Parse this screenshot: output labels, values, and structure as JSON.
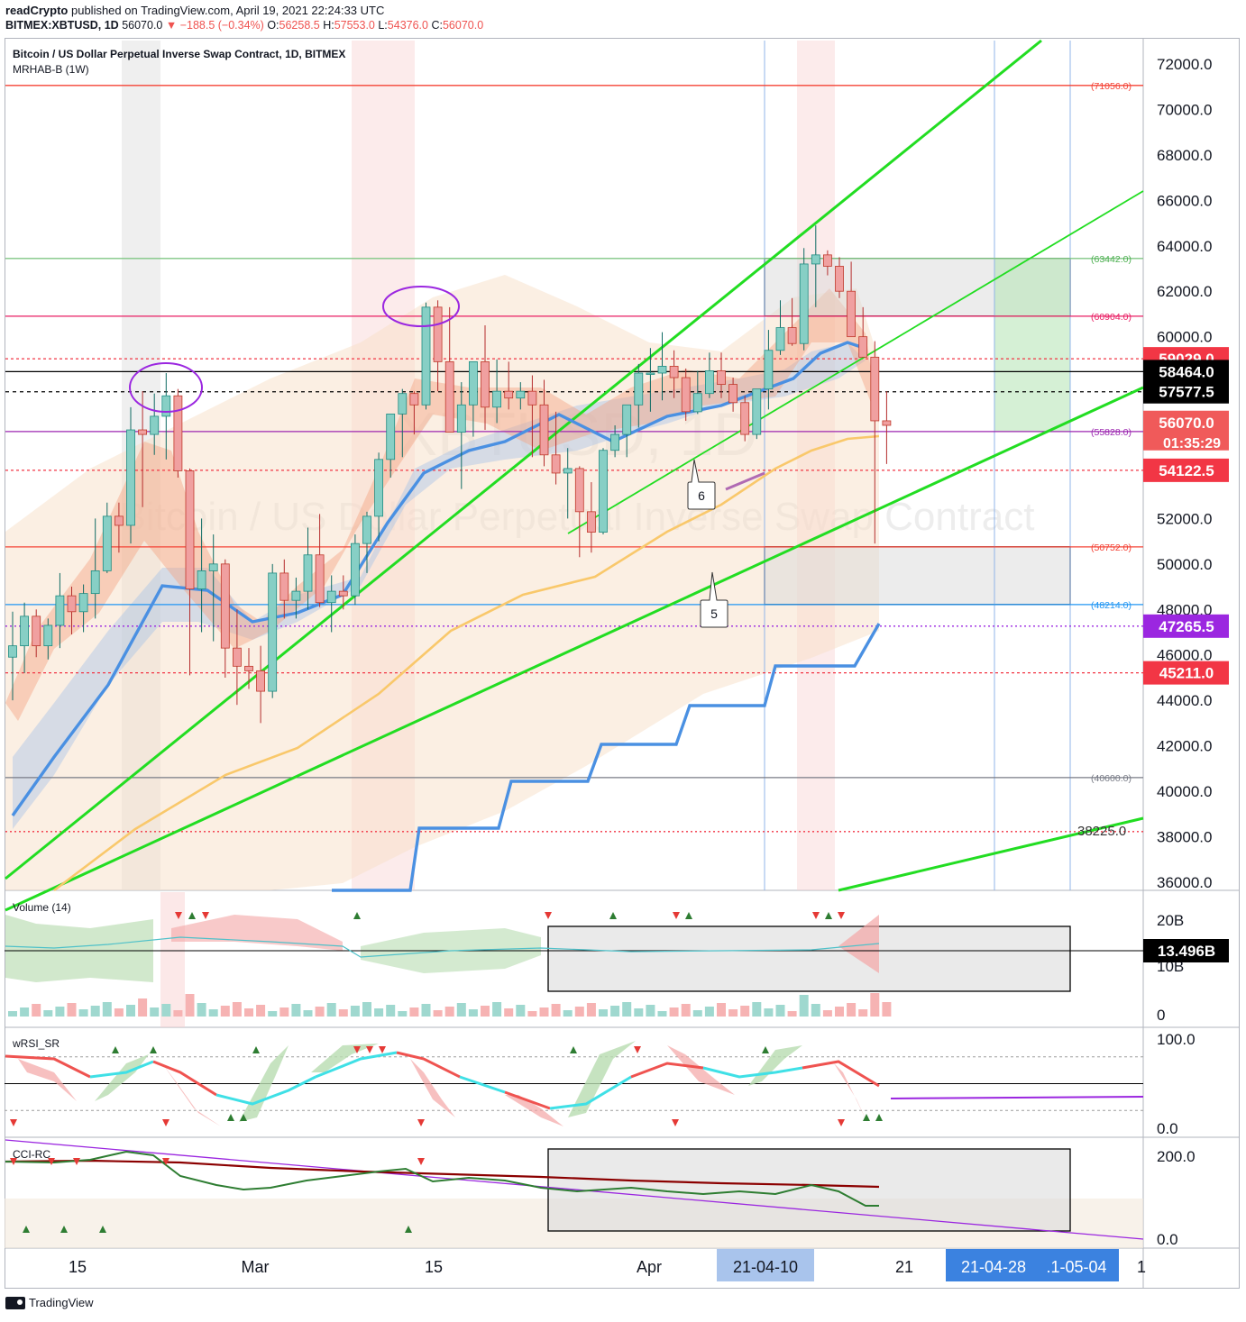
{
  "header": {
    "author": "readCrypto",
    "published": "published on TradingView.com, April 19, 2021 22:24:33 UTC",
    "symbol_line": "BITMEX:XBTUSD, 1D",
    "last": "56070.0",
    "change": "▼ −188.5 (−0.34%)",
    "o_label": "O:",
    "o_val": "56258.5",
    "h_label": "H:",
    "h_val": "57553.0",
    "l_label": "L:",
    "l_val": "54376.0",
    "c_label": "C:",
    "c_val": "56070.0"
  },
  "chart": {
    "title": "Bitcoin / US Dollar Perpetual Inverse Swap Contract, 1D, BITMEX",
    "indicator": "MRHAB-B (1W)",
    "watermark_ticker": "XBTUSD, 1D",
    "watermark_name": "Bitcoin / US Dollar Perpetual Inverse Swap Contract"
  },
  "footer": {
    "brand": "TradingView"
  },
  "colors": {
    "up": "#26a69a",
    "down": "#ef5350",
    "trend": "#22dd22",
    "blue_line": "#4a90e2",
    "ma_orange": "#f9c86b",
    "rsi_up": "#3fe0e6",
    "purple": "#9b27e0"
  },
  "chart_data": [
    {
      "type": "candlestick",
      "title": "Bitcoin / US Dollar Perpetual Inverse Swap Contract, 1D, BITMEX",
      "ylim": [
        35600,
        73000
      ],
      "y_ticks": [
        "72000.0",
        "70000.0",
        "68000.0",
        "66000.0",
        "64000.0",
        "62000.0",
        "60000.0",
        "58000.0",
        "56000.0",
        "54000.0",
        "52000.0",
        "50000.0",
        "48000.0",
        "46000.0",
        "44000.0",
        "42000.0",
        "40000.0",
        "38000.0",
        "36000.0"
      ],
      "x_labels": [
        "15",
        "Mar",
        "15",
        "Apr",
        "21-04-10",
        "21",
        "21-04-28",
        "21-05-04"
      ],
      "partial_labels": [
        ".1-05-04",
        "1"
      ],
      "price_badges": [
        {
          "text": "59029.0",
          "color": "#f23645"
        },
        {
          "text": "58464.0",
          "color": "#000000"
        },
        {
          "text": "57577.5",
          "color": "#000000"
        },
        {
          "text": "56070.0",
          "color": "#f05a5a"
        },
        {
          "text": "01:35:29",
          "color": "#f05a5a"
        },
        {
          "text": "54122.5",
          "color": "#f23645"
        },
        {
          "text": "47265.5",
          "color": "#9b27e0"
        },
        {
          "text": "45211.0",
          "color": "#f23645"
        }
      ],
      "level_labels": [
        "(71056.0)",
        "(63442.0)",
        "(60904.0)",
        "(55828.0)",
        "(50752.0)",
        "(48214.0)",
        "(40600.0)",
        "38225.0"
      ],
      "annotations": [
        "6",
        "5"
      ],
      "candles": [
        [
          45900,
          47900,
          44000,
          46400
        ],
        [
          46400,
          48300,
          45200,
          47700
        ],
        [
          47700,
          48000,
          45900,
          46400
        ],
        [
          46400,
          47600,
          45800,
          47300
        ],
        [
          47300,
          49600,
          46300,
          48600
        ],
        [
          48600,
          49000,
          46900,
          47900
        ],
        [
          47900,
          49100,
          47000,
          48700
        ],
        [
          48700,
          52000,
          47600,
          49700
        ],
        [
          49700,
          52700,
          49600,
          52100
        ],
        [
          52100,
          52700,
          50500,
          51700
        ],
        [
          51700,
          56900,
          50900,
          55900
        ],
        [
          55900,
          57600,
          52500,
          55700
        ],
        [
          55700,
          57500,
          54800,
          56500
        ],
        [
          56500,
          58400,
          54600,
          57400
        ],
        [
          57400,
          57700,
          53800,
          54100
        ],
        [
          54100,
          54200,
          45100,
          48900
        ],
        [
          48900,
          52000,
          47000,
          49700
        ],
        [
          49700,
          51300,
          46600,
          50000
        ],
        [
          50000,
          50200,
          45000,
          46300
        ],
        [
          46300,
          48000,
          43800,
          45500
        ],
        [
          45500,
          46300,
          44500,
          45300
        ],
        [
          45300,
          46400,
          43000,
          44400
        ],
        [
          44400,
          50000,
          44100,
          49600
        ],
        [
          49600,
          50200,
          47600,
          48400
        ],
        [
          48400,
          49400,
          47600,
          48800
        ],
        [
          48800,
          51600,
          48000,
          50400
        ],
        [
          50400,
          52200,
          48100,
          48300
        ],
        [
          48300,
          49500,
          47000,
          48800
        ],
        [
          48800,
          49500,
          48000,
          48600
        ],
        [
          48600,
          51300,
          48200,
          50900
        ],
        [
          50900,
          52300,
          49600,
          52100
        ],
        [
          52100,
          54900,
          51000,
          54600
        ],
        [
          54600,
          56500,
          53800,
          56600
        ],
        [
          56600,
          57700,
          54700,
          57500
        ],
        [
          57500,
          57600,
          55700,
          57000
        ],
        [
          57000,
          61500,
          56800,
          61300
        ],
        [
          61300,
          61600,
          57600,
          58900
        ],
        [
          58900,
          61300,
          55800,
          55800
        ],
        [
          55800,
          58000,
          53300,
          57000
        ],
        [
          57000,
          58700,
          55600,
          58900
        ],
        [
          58900,
          60500,
          55900,
          56900
        ],
        [
          56900,
          59000,
          56200,
          57600
        ],
        [
          57600,
          58900,
          56800,
          57300
        ],
        [
          57300,
          58000,
          56800,
          57600
        ],
        [
          57600,
          58300,
          54700,
          57000
        ],
        [
          57000,
          58100,
          54300,
          54800
        ],
        [
          54800,
          56700,
          53500,
          54000
        ],
        [
          54000,
          55100,
          52000,
          54200
        ],
        [
          54200,
          54300,
          50300,
          52300
        ],
        [
          52300,
          53600,
          50500,
          51400
        ],
        [
          51400,
          55100,
          51300,
          55000
        ],
        [
          55000,
          56100,
          54700,
          55700
        ],
        [
          55700,
          57000,
          54700,
          57000
        ],
        [
          57000,
          58800,
          56000,
          58400
        ],
        [
          58400,
          59500,
          56700,
          58400
        ],
        [
          58400,
          60200,
          57200,
          58700
        ],
        [
          58700,
          59400,
          57300,
          58200
        ],
        [
          58200,
          58600,
          56300,
          56700
        ],
        [
          56700,
          58500,
          56600,
          57500
        ],
        [
          57500,
          59300,
          57300,
          58500
        ],
        [
          58500,
          59300,
          57300,
          57900
        ],
        [
          57900,
          58200,
          56700,
          57100
        ],
        [
          57100,
          57400,
          55400,
          55700
        ],
        [
          55700,
          57700,
          55500,
          57700
        ],
        [
          57700,
          60300,
          56800,
          59400
        ],
        [
          59400,
          61600,
          59200,
          60400
        ],
        [
          60400,
          61700,
          59600,
          59700
        ],
        [
          59700,
          63900,
          59400,
          63200
        ],
        [
          63200,
          64900,
          61300,
          63600
        ],
        [
          63600,
          63800,
          62700,
          63100
        ],
        [
          63100,
          63500,
          61700,
          62000
        ],
        [
          62000,
          63300,
          60100,
          60000
        ],
        [
          60000,
          61300,
          59200,
          59100
        ],
        [
          59100,
          59800,
          50900,
          56300
        ],
        [
          56300,
          57600,
          54400,
          56100
        ]
      ],
      "hlines": [
        {
          "y": 71056,
          "color": "#f44336"
        },
        {
          "y": 63442,
          "color": "#81c784"
        },
        {
          "y": 60904,
          "color": "#e91e63"
        },
        {
          "y": 55828,
          "color": "#9c27b0"
        },
        {
          "y": 50752,
          "color": "#f44336"
        },
        {
          "y": 48214,
          "color": "#2196f3"
        },
        {
          "y": 40600,
          "color": "#787b86"
        }
      ]
    },
    {
      "type": "area",
      "title": "Volume (14)",
      "ylim": [
        0,
        25
      ],
      "y_ticks": [
        "20B",
        "10B",
        "0"
      ],
      "current": "13.496B"
    },
    {
      "type": "line",
      "title": "wRSI_SR",
      "ylim": [
        0,
        100
      ],
      "y_ticks": [
        "100.0",
        "0.0"
      ]
    },
    {
      "type": "line",
      "title": "CCI-RC",
      "ylim": [
        0,
        250
      ],
      "y_ticks": [
        "200.0",
        "0.0"
      ]
    }
  ]
}
